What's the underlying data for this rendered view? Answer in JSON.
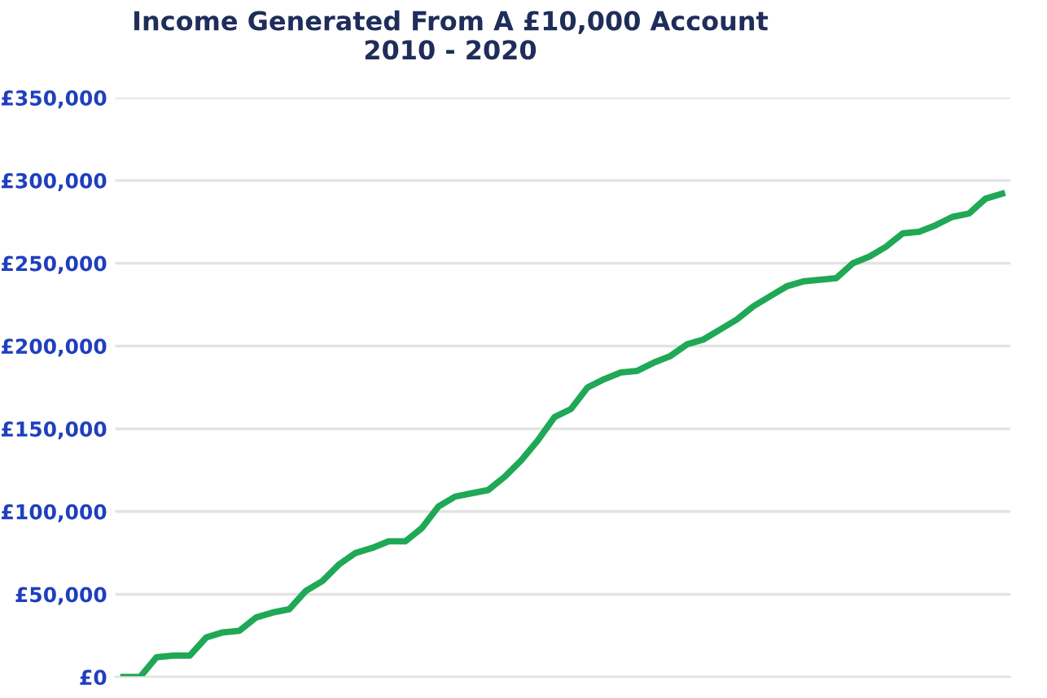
{
  "chart_data": {
    "type": "line",
    "title": "Income Generated From A £10,000 Account\n2010 - 2020",
    "categories": [
      null,
      null,
      null,
      null,
      null,
      null,
      null,
      null,
      null,
      null,
      null,
      null,
      null,
      null,
      null,
      null,
      null,
      null,
      null,
      null,
      null,
      null,
      null,
      null,
      null,
      null,
      null,
      null,
      null,
      null,
      null,
      null,
      null,
      null,
      null,
      null,
      null,
      null,
      null,
      null,
      null,
      null,
      null,
      null,
      null,
      null,
      null,
      null,
      null,
      null,
      null,
      null,
      null,
      null
    ],
    "series": [
      {
        "color": "#1fa855",
        "values": [
          0,
          0,
          12000,
          13000,
          13000,
          24000,
          27000,
          28000,
          36000,
          39000,
          41000,
          52000,
          58000,
          68000,
          75000,
          78000,
          82000,
          82000,
          90000,
          103000,
          109000,
          111000,
          113000,
          121000,
          131000,
          143000,
          157000,
          162000,
          175000,
          180000,
          184000,
          185000,
          190000,
          194000,
          201000,
          204000,
          210000,
          216000,
          224000,
          230000,
          236000,
          239000,
          240000,
          241000,
          250000,
          254000,
          260000,
          268000,
          269000,
          273000,
          278000,
          280000,
          289000,
          292000
        ]
      }
    ],
    "ylim": [
      0,
      350000
    ],
    "yticks": [
      {
        "value": 0,
        "label": "£0"
      },
      {
        "value": 50000,
        "label": "£50,000"
      },
      {
        "value": 100000,
        "label": "£100,000"
      },
      {
        "value": 150000,
        "label": "£150,000"
      },
      {
        "value": 200000,
        "label": "£200,000"
      },
      {
        "value": 250000,
        "label": "£250,000"
      },
      {
        "value": 300000,
        "label": "£300,000"
      },
      {
        "value": 350000,
        "label": "£350,000"
      }
    ],
    "grid": "y",
    "tick_labels": "y",
    "marker": "none",
    "line_style": "solid"
  }
}
